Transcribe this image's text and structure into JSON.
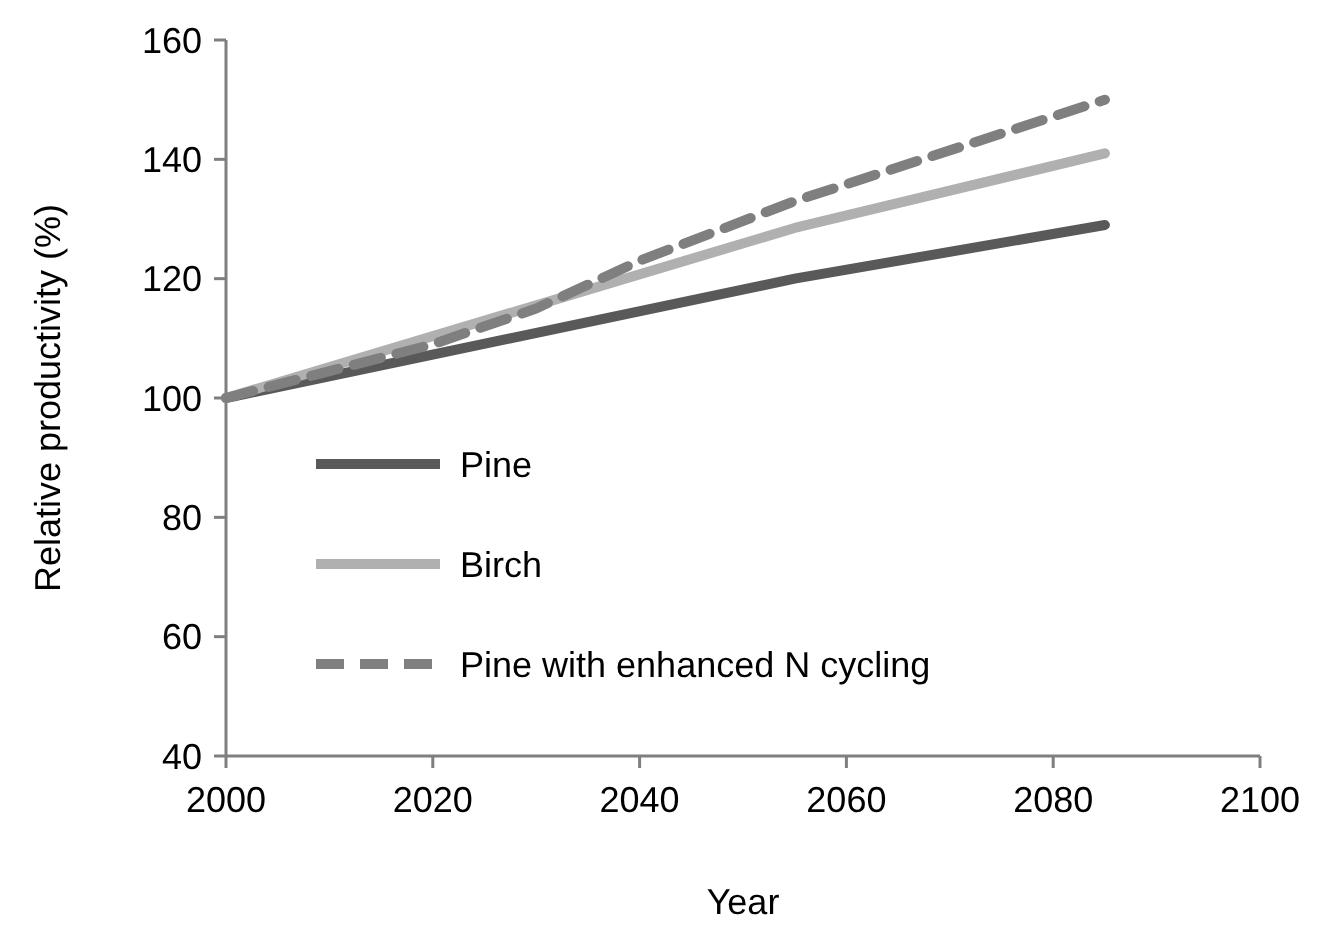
{
  "chart_data": {
    "type": "line",
    "xlabel": "Year",
    "ylabel": "Relative productivity (%)",
    "xlim": [
      2000,
      2100
    ],
    "xticks": [
      2000,
      2020,
      2040,
      2060,
      2080,
      2100
    ],
    "ylim": [
      40,
      160
    ],
    "yticks": [
      40,
      60,
      80,
      100,
      120,
      140,
      160
    ],
    "legend": "bottom left",
    "grid": false,
    "series": [
      {
        "name": "Pine",
        "color": "#595959",
        "x": [
          2000,
          2055,
          2085
        ],
        "values": [
          100,
          120,
          129
        ],
        "line_style": "solid"
      },
      {
        "name": "Birch",
        "color": "#b0b0b0",
        "x": [
          2000,
          2055,
          2085
        ],
        "values": [
          100,
          128.5,
          141
        ],
        "line_style": "solid"
      },
      {
        "name": "Pine with enhanced N cycling",
        "color": "#7f7f7f",
        "x": [
          2000,
          2020,
          2030,
          2040,
          2055,
          2085
        ],
        "values": [
          100,
          109,
          115,
          123,
          133,
          150
        ],
        "line_style": "dashed"
      }
    ]
  }
}
